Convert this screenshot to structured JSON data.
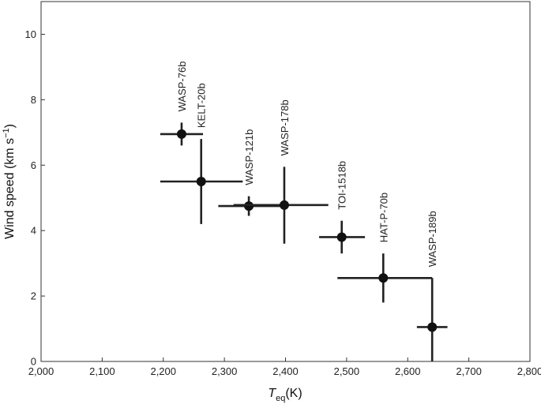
{
  "chart_data": {
    "type": "scatter",
    "xlabel": {
      "main": "T",
      "sub": "eq",
      "unit": "(K)"
    },
    "ylabel": {
      "main": "Wind speed (km s",
      "sup": "−1",
      "close": ")"
    },
    "xlim": [
      2000,
      2800
    ],
    "ylim": [
      0,
      11
    ],
    "x_ticks": [
      2000,
      2100,
      2200,
      2300,
      2400,
      2500,
      2600,
      2700,
      2800
    ],
    "x_tick_labels": [
      "2,000",
      "2,100",
      "2,200",
      "2,300",
      "2,400",
      "2,500",
      "2,600",
      "2,700",
      "2,800"
    ],
    "y_ticks": [
      0,
      2,
      4,
      6,
      8,
      10
    ],
    "y_tick_labels": [
      "0",
      "2",
      "4",
      "6",
      "8",
      "10"
    ],
    "grid": false,
    "points": [
      {
        "name": "WASP-76b",
        "x": 2230,
        "y": 6.95,
        "xerr": [
          2195,
          2265
        ],
        "yerr": [
          6.6,
          7.3
        ]
      },
      {
        "name": "KELT-20b",
        "x": 2262,
        "y": 5.5,
        "xerr": [
          2195,
          2330
        ],
        "yerr": [
          4.2,
          6.8
        ]
      },
      {
        "name": "WASP-121b",
        "x": 2340,
        "y": 4.75,
        "xerr": [
          2290,
          2395
        ],
        "yerr": [
          4.45,
          5.05
        ]
      },
      {
        "name": "WASP-178b",
        "x": 2398,
        "y": 4.78,
        "xerr": [
          2315,
          2470
        ],
        "yerr": [
          3.6,
          5.95
        ]
      },
      {
        "name": "TOI-1518b",
        "x": 2492,
        "y": 3.8,
        "xerr": [
          2455,
          2530
        ],
        "yerr": [
          3.3,
          4.3
        ]
      },
      {
        "name": "HAT-P-70b",
        "x": 2560,
        "y": 2.55,
        "xerr": [
          2485,
          2640
        ],
        "yerr": [
          1.8,
          3.3
        ]
      },
      {
        "name": "WASP-189b",
        "x": 2640,
        "y": 1.05,
        "xerr": [
          2615,
          2665
        ],
        "yerr": [
          0.0,
          2.55
        ]
      }
    ]
  }
}
